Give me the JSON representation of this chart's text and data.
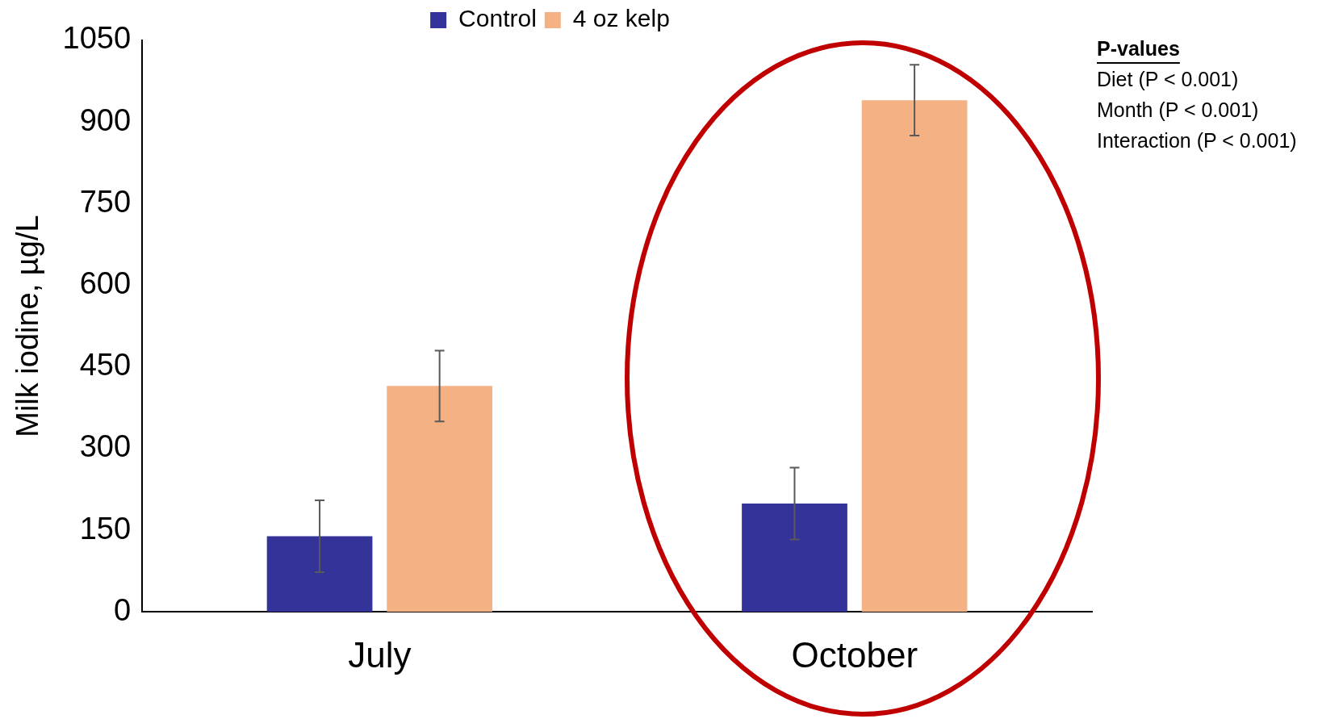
{
  "chart_data": {
    "type": "bar",
    "ylabel": "Milk iodine, µg/L",
    "categories": [
      "July",
      "October"
    ],
    "series": [
      {
        "name": "Control",
        "color": "#333399",
        "values": [
          139,
          199
        ],
        "errors": [
          66,
          66
        ]
      },
      {
        "name": "4 oz kelp",
        "color": "#f4b183",
        "values": [
          415,
          940
        ],
        "errors": [
          65,
          65
        ]
      }
    ],
    "ylim": [
      0,
      1050
    ],
    "yticks": [
      0,
      150,
      300,
      450,
      600,
      750,
      900,
      1050
    ],
    "grid": false,
    "legend": "top",
    "annotations": [
      "P-values",
      "Diet (P < 0.001)",
      "Month (P < 0.001)",
      "Interaction (P < 0.001)"
    ]
  }
}
